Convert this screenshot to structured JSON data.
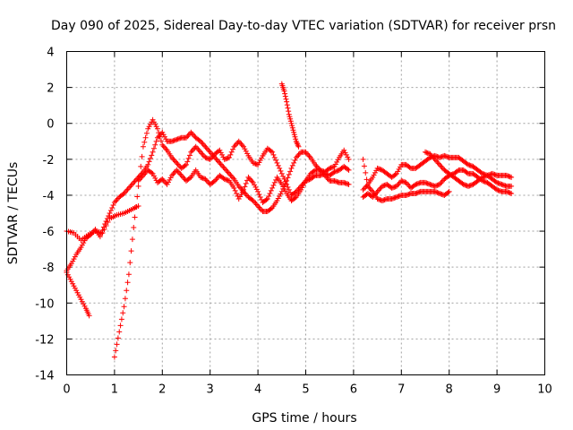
{
  "chart_data": {
    "type": "scatter",
    "title": "Day 090 of 2025, Sidereal Day-to-day VTEC variation (SDTVAR) for receiver prsn",
    "xlabel": "GPS time / hours",
    "ylabel": "SDTVAR / TECUs",
    "xlim": [
      0,
      10
    ],
    "ylim": [
      -14,
      4
    ],
    "xticks": [
      "0",
      "1",
      "2",
      "3",
      "4",
      "5",
      "6",
      "7",
      "8",
      "9",
      "10"
    ],
    "yticks": [
      "4",
      "2",
      "0",
      "-2",
      "-4",
      "-6",
      "-8",
      "-10",
      "-12",
      "-14"
    ],
    "grid": true,
    "marker": "+",
    "color": "#ff0000",
    "series": [
      {
        "name": "trace-1",
        "points": [
          [
            0.0,
            -6.0
          ],
          [
            0.15,
            -6.1
          ],
          [
            0.3,
            -6.5
          ],
          [
            0.45,
            -6.2
          ],
          [
            0.6,
            -6.0
          ],
          [
            0.75,
            -6.1
          ],
          [
            0.9,
            -5.3
          ],
          [
            1.05,
            -5.1
          ],
          [
            1.2,
            -5.0
          ],
          [
            1.35,
            -4.8
          ],
          [
            1.5,
            -4.6
          ]
        ]
      },
      {
        "name": "trace-2",
        "points": [
          [
            0.0,
            -8.3
          ],
          [
            0.1,
            -8.8
          ],
          [
            0.2,
            -9.3
          ],
          [
            0.3,
            -9.8
          ],
          [
            0.4,
            -10.3
          ],
          [
            0.47,
            -10.7
          ]
        ]
      },
      {
        "name": "trace-3",
        "points": [
          [
            0.0,
            -8.2
          ],
          [
            0.1,
            -7.8
          ],
          [
            0.2,
            -7.3
          ],
          [
            0.3,
            -6.9
          ],
          [
            0.4,
            -6.4
          ],
          [
            0.5,
            -6.2
          ],
          [
            0.6,
            -5.9
          ],
          [
            0.7,
            -6.3
          ],
          [
            0.8,
            -5.6
          ],
          [
            0.9,
            -5.0
          ],
          [
            1.0,
            -4.4
          ],
          [
            1.1,
            -4.1
          ],
          [
            1.2,
            -3.9
          ],
          [
            1.3,
            -3.6
          ],
          [
            1.4,
            -3.3
          ],
          [
            1.5,
            -3.0
          ],
          [
            1.6,
            -2.7
          ],
          [
            1.7,
            -2.3
          ],
          [
            1.8,
            -1.6
          ],
          [
            1.9,
            -0.8
          ],
          [
            2.0,
            -0.5
          ],
          [
            2.1,
            -1.0
          ],
          [
            2.2,
            -1.0
          ],
          [
            2.3,
            -0.9
          ],
          [
            2.4,
            -0.8
          ],
          [
            2.5,
            -0.8
          ],
          [
            2.6,
            -0.5
          ],
          [
            2.7,
            -0.8
          ],
          [
            2.8,
            -1.0
          ],
          [
            2.9,
            -1.3
          ],
          [
            3.0,
            -1.6
          ],
          [
            3.1,
            -1.9
          ],
          [
            3.2,
            -2.2
          ],
          [
            3.3,
            -2.5
          ],
          [
            3.4,
            -2.8
          ],
          [
            3.5,
            -3.1
          ],
          [
            3.6,
            -3.5
          ],
          [
            3.7,
            -3.8
          ],
          [
            3.8,
            -4.1
          ],
          [
            3.9,
            -4.3
          ],
          [
            4.0,
            -4.6
          ],
          [
            4.1,
            -4.9
          ],
          [
            4.2,
            -4.9
          ],
          [
            4.3,
            -4.7
          ],
          [
            4.4,
            -4.3
          ],
          [
            4.5,
            -3.8
          ],
          [
            4.6,
            -3.2
          ],
          [
            4.7,
            -2.5
          ],
          [
            4.8,
            -1.9
          ],
          [
            4.9,
            -1.6
          ],
          [
            5.0,
            -1.6
          ],
          [
            5.1,
            -1.9
          ],
          [
            5.2,
            -2.3
          ],
          [
            5.3,
            -2.6
          ],
          [
            5.4,
            -2.9
          ],
          [
            5.5,
            -3.2
          ],
          [
            5.6,
            -3.2
          ],
          [
            5.7,
            -3.3
          ],
          [
            5.8,
            -3.3
          ],
          [
            5.9,
            -3.4
          ]
        ]
      },
      {
        "name": "trace-4",
        "points": [
          [
            1.0,
            -13.0
          ],
          [
            1.1,
            -11.6
          ],
          [
            1.2,
            -10.2
          ],
          [
            1.3,
            -8.4
          ],
          [
            1.4,
            -5.8
          ],
          [
            1.5,
            -3.5
          ],
          [
            1.6,
            -1.3
          ],
          [
            1.7,
            -0.3
          ],
          [
            1.8,
            0.2
          ],
          [
            1.9,
            -0.3
          ],
          [
            2.0,
            -1.2
          ],
          [
            2.1,
            -1.5
          ],
          [
            2.2,
            -1.9
          ],
          [
            2.3,
            -2.2
          ],
          [
            2.4,
            -2.5
          ],
          [
            2.5,
            -2.3
          ],
          [
            2.6,
            -1.6
          ],
          [
            2.7,
            -1.3
          ],
          [
            2.8,
            -1.6
          ],
          [
            2.9,
            -1.9
          ],
          [
            3.0,
            -2.0
          ],
          [
            3.1,
            -1.7
          ],
          [
            3.2,
            -1.5
          ],
          [
            3.3,
            -2.0
          ],
          [
            3.4,
            -1.9
          ],
          [
            3.5,
            -1.3
          ],
          [
            3.6,
            -1.0
          ],
          [
            3.7,
            -1.3
          ],
          [
            3.8,
            -1.8
          ],
          [
            3.9,
            -2.2
          ],
          [
            4.0,
            -2.3
          ],
          [
            4.1,
            -1.8
          ],
          [
            4.2,
            -1.4
          ],
          [
            4.3,
            -1.6
          ],
          [
            4.4,
            -2.2
          ],
          [
            4.5,
            -2.8
          ],
          [
            4.6,
            -3.4
          ],
          [
            4.7,
            -4.0
          ],
          [
            4.8,
            -3.8
          ],
          [
            4.9,
            -3.5
          ],
          [
            5.0,
            -3.2
          ],
          [
            5.1,
            -2.8
          ],
          [
            5.2,
            -2.6
          ],
          [
            5.3,
            -2.6
          ],
          [
            5.4,
            -2.7
          ],
          [
            5.5,
            -2.5
          ],
          [
            5.6,
            -2.4
          ],
          [
            5.7,
            -1.9
          ],
          [
            5.8,
            -1.5
          ],
          [
            5.9,
            -2.0
          ]
        ]
      },
      {
        "name": "trace-5",
        "points": [
          [
            1.5,
            -3.2
          ],
          [
            1.6,
            -2.9
          ],
          [
            1.7,
            -2.6
          ],
          [
            1.8,
            -2.8
          ],
          [
            1.9,
            -3.3
          ],
          [
            2.0,
            -3.1
          ],
          [
            2.1,
            -3.4
          ],
          [
            2.2,
            -2.9
          ],
          [
            2.3,
            -2.6
          ],
          [
            2.4,
            -2.9
          ],
          [
            2.5,
            -3.2
          ],
          [
            2.6,
            -3.0
          ],
          [
            2.7,
            -2.6
          ],
          [
            2.8,
            -3.0
          ],
          [
            2.9,
            -3.1
          ],
          [
            3.0,
            -3.4
          ],
          [
            3.1,
            -3.2
          ],
          [
            3.2,
            -2.9
          ],
          [
            3.3,
            -3.1
          ],
          [
            3.4,
            -3.2
          ],
          [
            3.5,
            -3.6
          ],
          [
            3.6,
            -4.2
          ],
          [
            3.7,
            -3.7
          ],
          [
            3.8,
            -3.0
          ],
          [
            3.9,
            -3.3
          ],
          [
            4.0,
            -3.8
          ],
          [
            4.1,
            -4.4
          ],
          [
            4.2,
            -4.2
          ],
          [
            4.3,
            -3.6
          ],
          [
            4.4,
            -3.0
          ],
          [
            4.5,
            -3.4
          ],
          [
            4.6,
            -3.9
          ],
          [
            4.7,
            -4.3
          ],
          [
            4.8,
            -4.1
          ],
          [
            4.9,
            -3.7
          ],
          [
            5.0,
            -3.2
          ],
          [
            5.1,
            -3.1
          ],
          [
            5.2,
            -2.9
          ],
          [
            5.3,
            -2.9
          ],
          [
            5.4,
            -2.8
          ],
          [
            5.5,
            -2.9
          ],
          [
            5.6,
            -2.7
          ],
          [
            5.7,
            -2.6
          ],
          [
            5.8,
            -2.4
          ],
          [
            5.9,
            -2.6
          ]
        ]
      },
      {
        "name": "trace-6",
        "points": [
          [
            4.5,
            2.2
          ],
          [
            4.55,
            1.8
          ],
          [
            4.6,
            1.2
          ],
          [
            4.65,
            0.5
          ],
          [
            4.7,
            0.0
          ],
          [
            4.75,
            -0.5
          ],
          [
            4.8,
            -1.0
          ],
          [
            4.85,
            -1.3
          ]
        ]
      },
      {
        "name": "trace-7",
        "points": [
          [
            6.2,
            -2.0
          ],
          [
            6.3,
            -3.5
          ],
          [
            6.4,
            -3.8
          ],
          [
            6.5,
            -4.2
          ],
          [
            6.6,
            -4.3
          ],
          [
            6.7,
            -4.2
          ],
          [
            6.8,
            -4.2
          ],
          [
            6.9,
            -4.1
          ],
          [
            7.0,
            -4.0
          ],
          [
            7.1,
            -4.0
          ],
          [
            7.2,
            -3.9
          ],
          [
            7.3,
            -3.9
          ],
          [
            7.4,
            -3.8
          ],
          [
            7.5,
            -3.8
          ],
          [
            7.6,
            -3.8
          ],
          [
            7.7,
            -3.8
          ],
          [
            7.8,
            -3.9
          ],
          [
            7.9,
            -4.0
          ],
          [
            8.0,
            -3.8
          ]
        ]
      },
      {
        "name": "trace-8",
        "points": [
          [
            6.2,
            -3.7
          ],
          [
            6.3,
            -3.4
          ],
          [
            6.4,
            -3.0
          ],
          [
            6.5,
            -2.5
          ],
          [
            6.6,
            -2.6
          ],
          [
            6.7,
            -2.8
          ],
          [
            6.8,
            -3.0
          ],
          [
            6.9,
            -2.8
          ],
          [
            7.0,
            -2.3
          ],
          [
            7.1,
            -2.3
          ],
          [
            7.2,
            -2.5
          ],
          [
            7.3,
            -2.5
          ],
          [
            7.4,
            -2.3
          ],
          [
            7.5,
            -2.1
          ],
          [
            7.6,
            -1.9
          ],
          [
            7.7,
            -1.8
          ],
          [
            7.8,
            -1.9
          ],
          [
            7.9,
            -1.8
          ],
          [
            8.0,
            -1.9
          ],
          [
            8.1,
            -1.9
          ],
          [
            8.2,
            -1.9
          ],
          [
            8.3,
            -2.1
          ],
          [
            8.4,
            -2.3
          ],
          [
            8.5,
            -2.4
          ],
          [
            8.6,
            -2.6
          ],
          [
            8.7,
            -2.8
          ],
          [
            8.8,
            -2.9
          ],
          [
            8.9,
            -2.8
          ],
          [
            9.0,
            -2.9
          ],
          [
            9.1,
            -2.9
          ],
          [
            9.2,
            -2.9
          ],
          [
            9.3,
            -3.0
          ]
        ]
      },
      {
        "name": "trace-9",
        "points": [
          [
            6.2,
            -4.1
          ],
          [
            6.3,
            -3.9
          ],
          [
            6.4,
            -4.1
          ],
          [
            6.5,
            -3.8
          ],
          [
            6.6,
            -3.5
          ],
          [
            6.7,
            -3.4
          ],
          [
            6.8,
            -3.6
          ],
          [
            6.9,
            -3.5
          ],
          [
            7.0,
            -3.2
          ],
          [
            7.1,
            -3.3
          ],
          [
            7.2,
            -3.6
          ],
          [
            7.3,
            -3.4
          ],
          [
            7.4,
            -3.3
          ],
          [
            7.5,
            -3.3
          ],
          [
            7.6,
            -3.4
          ],
          [
            7.7,
            -3.5
          ],
          [
            7.8,
            -3.4
          ],
          [
            7.9,
            -3.1
          ],
          [
            8.0,
            -2.9
          ],
          [
            8.1,
            -2.8
          ],
          [
            8.2,
            -2.6
          ],
          [
            8.3,
            -2.6
          ],
          [
            8.4,
            -2.8
          ],
          [
            8.5,
            -2.8
          ],
          [
            8.6,
            -3.0
          ],
          [
            8.7,
            -3.2
          ],
          [
            8.8,
            -3.3
          ],
          [
            8.9,
            -3.5
          ],
          [
            9.0,
            -3.7
          ],
          [
            9.1,
            -3.8
          ],
          [
            9.2,
            -3.8
          ],
          [
            9.3,
            -3.9
          ]
        ]
      },
      {
        "name": "trace-10",
        "points": [
          [
            7.5,
            -1.6
          ],
          [
            7.6,
            -1.7
          ],
          [
            7.7,
            -2.0
          ],
          [
            7.8,
            -2.3
          ],
          [
            7.9,
            -2.6
          ],
          [
            8.0,
            -2.8
          ],
          [
            8.1,
            -3.0
          ],
          [
            8.2,
            -3.2
          ],
          [
            8.3,
            -3.4
          ],
          [
            8.4,
            -3.5
          ],
          [
            8.5,
            -3.4
          ],
          [
            8.6,
            -3.2
          ],
          [
            8.7,
            -3.0
          ],
          [
            8.8,
            -2.9
          ],
          [
            8.9,
            -3.1
          ],
          [
            9.0,
            -3.3
          ],
          [
            9.1,
            -3.4
          ],
          [
            9.2,
            -3.5
          ],
          [
            9.3,
            -3.5
          ]
        ]
      }
    ]
  }
}
